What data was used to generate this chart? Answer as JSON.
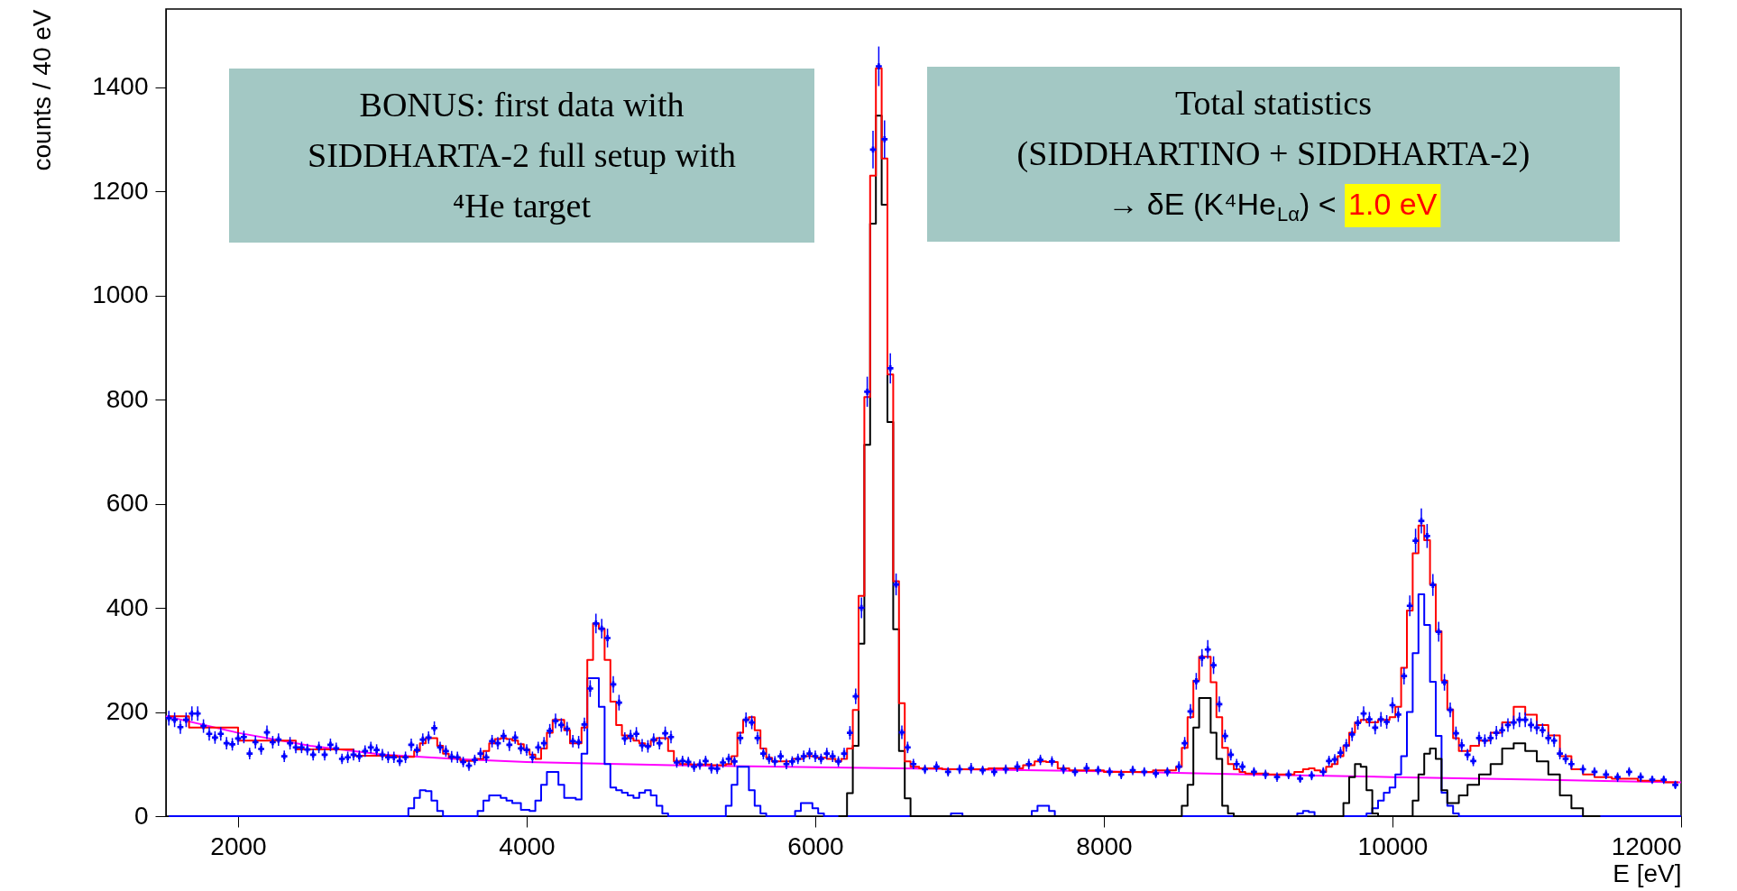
{
  "chart_data": {
    "type": "scatter",
    "xlabel": "E [eV]",
    "ylabel": "counts / 40 eV",
    "xlim": [
      1500,
      12000
    ],
    "ylim": [
      0,
      1550
    ],
    "xticks": [
      2000,
      4000,
      6000,
      8000,
      10000,
      12000
    ],
    "yticks": [
      0,
      200,
      400,
      600,
      800,
      1000,
      1200,
      1400
    ],
    "grid": false,
    "annotations": [
      "BONUS: first data with\nSIDDHARTA-2 full setup with\n⁴He target",
      "Total statistics\n(SIDDHARTINO + SIDDHARTA-2)\n→ δE (K⁴He$_{Lα}$) < ",
      "1.0 eV"
    ],
    "series": [
      {
        "type": "line",
        "color": "#ff00ff",
        "x": [
          1500,
          2000,
          2500,
          3000,
          3500,
          4000,
          5000,
          6000,
          7000,
          8000,
          9000,
          10000,
          11000,
          12000
        ],
        "values": [
          192,
          160,
          135,
          118,
          110,
          104,
          98,
          94,
          90,
          86,
          80,
          75,
          70,
          65
        ]
      },
      {
        "type": "step",
        "color": "#0000ff",
        "x": [
          1520,
          3160,
          3200,
          3240,
          3280,
          3320,
          3360,
          3400,
          3440,
          3640,
          3680,
          3720,
          3760,
          3800,
          3840,
          3880,
          3920,
          4000,
          4040,
          4080,
          4120,
          4160,
          4200,
          4240,
          4280,
          4320,
          4360,
          4400,
          4440,
          4480,
          4520,
          4560,
          4600,
          4640,
          4680,
          4720,
          4760,
          4800,
          4840,
          4880,
          4920,
          4960,
          5000,
          5360,
          5400,
          5440,
          5480,
          5520,
          5560,
          5600,
          5640,
          5680,
          5840,
          5880,
          5920,
          5960,
          6000,
          6040,
          6080,
          6920,
          6960,
          7000,
          7040,
          7480,
          7520,
          7560,
          7600,
          7640,
          7680,
          9320,
          9360,
          9400,
          9440,
          9480,
          9800,
          9840,
          9880,
          9920,
          9960,
          10000,
          10040,
          10080,
          10120,
          10160,
          10200,
          10240,
          10280,
          10320,
          10360,
          10400,
          10440,
          10480,
          12000
        ],
        "values": [
          0,
          0,
          15,
          35,
          50,
          48,
          30,
          10,
          0,
          0,
          10,
          30,
          40,
          40,
          35,
          30,
          25,
          12,
          10,
          30,
          60,
          85,
          85,
          60,
          35,
          35,
          32,
          120,
          265,
          265,
          210,
          100,
          55,
          50,
          45,
          40,
          35,
          45,
          50,
          40,
          20,
          5,
          0,
          0,
          20,
          60,
          95,
          95,
          50,
          20,
          5,
          0,
          0,
          10,
          25,
          25,
          15,
          5,
          0,
          0,
          5,
          5,
          0,
          0,
          10,
          20,
          20,
          10,
          0,
          0,
          5,
          10,
          8,
          0,
          0,
          5,
          15,
          30,
          45,
          55,
          80,
          115,
          200,
          313,
          426,
          367,
          258,
          154,
          45,
          20,
          5,
          0,
          0
        ]
      },
      {
        "type": "step",
        "color": "#000000",
        "x": [
          6160,
          6200,
          6240,
          6280,
          6320,
          6360,
          6400,
          6440,
          6480,
          6520,
          6560,
          6600,
          6640,
          6680,
          8520,
          8560,
          8600,
          8640,
          8680,
          8720,
          8760,
          8800,
          8840,
          8880,
          8920,
          9640,
          9680,
          9720,
          9760,
          9800,
          9840,
          9880,
          9920,
          10120,
          10160,
          10200,
          10240,
          10280,
          10320,
          10360,
          10400,
          10440,
          10480,
          10560,
          10640,
          10720,
          10800,
          10880,
          10960,
          11040,
          11120,
          11200,
          11280,
          11360,
          11440
        ],
        "values": [
          0,
          0,
          44,
          135,
          331,
          713,
          1138,
          1345,
          1174,
          757,
          359,
          125,
          34,
          0,
          0,
          20,
          60,
          170,
          227,
          227,
          160,
          110,
          20,
          5,
          0,
          0,
          25,
          75,
          100,
          95,
          50,
          5,
          0,
          0,
          30,
          80,
          120,
          130,
          110,
          50,
          25,
          25,
          40,
          60,
          80,
          100,
          130,
          140,
          125,
          105,
          80,
          40,
          15,
          0,
          0
        ]
      },
      {
        "type": "step",
        "color": "#ff0000",
        "x": [
          1520,
          1800,
          2200,
          2600,
          3000,
          3200,
          3240,
          3280,
          3320,
          3360,
          3400,
          3440,
          3480,
          3600,
          3680,
          3720,
          3760,
          3800,
          3840,
          3880,
          3920,
          3960,
          4000,
          4040,
          4080,
          4120,
          4160,
          4200,
          4240,
          4280,
          4320,
          4360,
          4400,
          4440,
          4480,
          4520,
          4560,
          4600,
          4640,
          4680,
          4720,
          4760,
          4800,
          4840,
          4880,
          4920,
          4960,
          5000,
          5040,
          5080,
          5200,
          5360,
          5400,
          5440,
          5480,
          5520,
          5560,
          5600,
          5640,
          5680,
          5720,
          5800,
          5880,
          5960,
          6040,
          6120,
          6160,
          6200,
          6240,
          6280,
          6320,
          6360,
          6400,
          6440,
          6480,
          6520,
          6560,
          6600,
          6640,
          6680,
          6760,
          7000,
          7400,
          7480,
          7560,
          7640,
          7720,
          7800,
          8200,
          8480,
          8520,
          8560,
          8600,
          8640,
          8680,
          8720,
          8760,
          8800,
          8840,
          8880,
          8920,
          8960,
          9000,
          9280,
          9360,
          9400,
          9440,
          9480,
          9520,
          9560,
          9600,
          9640,
          9680,
          9720,
          9760,
          9800,
          9840,
          9880,
          9920,
          9960,
          10000,
          10040,
          10080,
          10120,
          10160,
          10200,
          10240,
          10280,
          10320,
          10360,
          10400,
          10440,
          10480,
          10520,
          10560,
          10640,
          10720,
          10800,
          10880,
          10960,
          11040,
          11120,
          11200,
          11280,
          11360,
          11440,
          11600,
          11800,
          11980
        ],
        "values": [
          192,
          170,
          145,
          128,
          116,
          114,
          125,
          140,
          150,
          150,
          135,
          120,
          112,
          106,
          110,
          125,
          140,
          148,
          150,
          148,
          145,
          138,
          128,
          118,
          110,
          130,
          160,
          185,
          185,
          165,
          140,
          140,
          170,
          300,
          370,
          360,
          300,
          220,
          175,
          155,
          150,
          145,
          140,
          135,
          145,
          150,
          150,
          125,
          105,
          100,
          99,
          98,
          100,
          115,
          160,
          185,
          190,
          165,
          130,
          112,
          105,
          105,
          110,
          115,
          112,
          110,
          105,
          110,
          130,
          204,
          423,
          805,
          1230,
          1436,
          1263,
          848,
          451,
          217,
          105,
          95,
          92,
          90,
          92,
          98,
          105,
          104,
          92,
          88,
          85,
          88,
          95,
          131,
          190,
          260,
          306,
          306,
          257,
          190,
          131,
          100,
          90,
          85,
          82,
          80,
          85,
          90,
          92,
          88,
          85,
          95,
          100,
          115,
          135,
          160,
          180,
          185,
          180,
          180,
          185,
          185,
          190,
          210,
          285,
          395,
          505,
          558,
          530,
          445,
          355,
          260,
          205,
          150,
          125,
          125,
          135,
          145,
          160,
          180,
          210,
          195,
          175,
          155,
          115,
          90,
          80,
          75,
          72,
          68,
          65
        ]
      },
      {
        "color": "#0000ff",
        "marker": "cross",
        "x": [
          1520,
          1560,
          1600,
          1640,
          1680,
          1720,
          1760,
          1800,
          1840,
          1880,
          1920,
          1960,
          2000,
          2040,
          2080,
          2120,
          2160,
          2200,
          2240,
          2280,
          2320,
          2360,
          2400,
          2440,
          2480,
          2520,
          2560,
          2600,
          2640,
          2680,
          2720,
          2760,
          2800,
          2840,
          2880,
          2920,
          2960,
          3000,
          3040,
          3080,
          3120,
          3160,
          3200,
          3240,
          3280,
          3320,
          3360,
          3400,
          3440,
          3480,
          3520,
          3560,
          3600,
          3640,
          3680,
          3720,
          3760,
          3800,
          3840,
          3880,
          3920,
          3960,
          4000,
          4040,
          4080,
          4120,
          4160,
          4200,
          4240,
          4280,
          4320,
          4360,
          4400,
          4440,
          4480,
          4520,
          4560,
          4600,
          4640,
          4680,
          4720,
          4760,
          4800,
          4840,
          4880,
          4920,
          4960,
          5000,
          5040,
          5080,
          5120,
          5160,
          5200,
          5240,
          5280,
          5320,
          5360,
          5400,
          5440,
          5480,
          5520,
          5560,
          5600,
          5640,
          5680,
          5720,
          5760,
          5800,
          5840,
          5880,
          5920,
          5960,
          6000,
          6040,
          6080,
          6120,
          6160,
          6200,
          6240,
          6280,
          6320,
          6360,
          6400,
          6440,
          6480,
          6520,
          6560,
          6600,
          6640,
          6680,
          6760,
          6840,
          6920,
          7000,
          7080,
          7160,
          7240,
          7320,
          7400,
          7480,
          7560,
          7640,
          7720,
          7800,
          7880,
          7960,
          8040,
          8120,
          8200,
          8280,
          8360,
          8440,
          8520,
          8560,
          8600,
          8640,
          8680,
          8720,
          8760,
          8800,
          8840,
          8880,
          8920,
          8960,
          9040,
          9120,
          9200,
          9280,
          9360,
          9440,
          9520,
          9560,
          9600,
          9640,
          9680,
          9720,
          9760,
          9800,
          9840,
          9880,
          9920,
          9960,
          10000,
          10040,
          10080,
          10120,
          10160,
          10200,
          10240,
          10280,
          10320,
          10360,
          10400,
          10440,
          10480,
          10520,
          10560,
          10600,
          10640,
          10680,
          10720,
          10760,
          10800,
          10840,
          10880,
          10920,
          10960,
          11000,
          11040,
          11080,
          11120,
          11160,
          11200,
          11240,
          11320,
          11400,
          11480,
          11560,
          11640,
          11720,
          11800,
          11880,
          11960
        ],
        "values": [
          188,
          185,
          171,
          185,
          197,
          197,
          173,
          158,
          151,
          158,
          140,
          138,
          149,
          152,
          120,
          142,
          129,
          161,
          142,
          147,
          115,
          140,
          132,
          132,
          128,
          118,
          132,
          118,
          137,
          130,
          110,
          113,
          118,
          115,
          125,
          132,
          127,
          118,
          113,
          113,
          106,
          113,
          137,
          127,
          147,
          151,
          169,
          132,
          125,
          114,
          113,
          104,
          97,
          108,
          120,
          113,
          144,
          140,
          154,
          137,
          151,
          130,
          127,
          113,
          132,
          140,
          164,
          183,
          175,
          168,
          144,
          142,
          176,
          245,
          370,
          360,
          342,
          253,
          218,
          149,
          154,
          158,
          136,
          134,
          147,
          140,
          159,
          152,
          103,
          106,
          104,
          95,
          99,
          106,
          92,
          91,
          103,
          110,
          105,
          150,
          185,
          180,
          150,
          120,
          110,
          105,
          115,
          100,
          105,
          110,
          115,
          120,
          115,
          110,
          120,
          115,
          105,
          120,
          160,
          230,
          400,
          815,
          1280,
          1440,
          1300,
          860,
          445,
          161,
          132,
          100,
          90,
          95,
          85,
          90,
          92,
          88,
          85,
          90,
          95,
          100,
          108,
          105,
          90,
          85,
          92,
          88,
          85,
          80,
          88,
          85,
          82,
          85,
          95,
          140,
          201,
          259,
          304,
          320,
          290,
          215,
          154,
          118,
          100,
          95,
          85,
          80,
          75,
          80,
          72,
          78,
          85,
          106,
          109,
          122,
          136,
          157,
          179,
          197,
          186,
          170,
          186,
          181,
          213,
          195,
          269,
          404,
          529,
          567,
          538,
          444,
          354,
          257,
          204,
          159,
          136,
          118,
          106,
          150,
          145,
          150,
          160,
          165,
          175,
          180,
          185,
          185,
          175,
          170,
          165,
          150,
          145,
          120,
          110,
          100,
          90,
          85,
          80,
          75,
          85,
          75,
          70,
          70,
          60
        ],
        "errors": [
          14,
          14,
          13,
          14,
          14,
          14,
          13,
          13,
          12,
          13,
          12,
          12,
          12,
          12,
          11,
          12,
          11,
          13,
          12,
          12,
          11,
          12,
          11,
          11,
          11,
          11,
          11,
          11,
          12,
          11,
          10,
          11,
          11,
          11,
          11,
          11,
          11,
          11,
          11,
          11,
          10,
          11,
          12,
          11,
          12,
          12,
          13,
          11,
          11,
          11,
          11,
          10,
          10,
          10,
          11,
          11,
          12,
          12,
          12,
          12,
          12,
          11,
          11,
          11,
          11,
          12,
          13,
          14,
          13,
          13,
          12,
          12,
          13,
          16,
          19,
          19,
          18,
          16,
          15,
          12,
          12,
          13,
          12,
          12,
          12,
          12,
          13,
          12,
          10,
          10,
          10,
          10,
          10,
          10,
          10,
          10,
          10,
          10,
          10,
          12,
          14,
          13,
          12,
          11,
          10,
          10,
          11,
          10,
          10,
          10,
          11,
          11,
          11,
          10,
          11,
          11,
          10,
          11,
          13,
          15,
          20,
          29,
          36,
          38,
          36,
          29,
          21,
          13,
          11,
          10,
          9,
          10,
          9,
          9,
          10,
          9,
          9,
          9,
          10,
          10,
          10,
          10,
          9,
          9,
          10,
          9,
          9,
          9,
          9,
          9,
          9,
          9,
          10,
          12,
          14,
          16,
          17,
          18,
          17,
          15,
          12,
          11,
          10,
          10,
          9,
          9,
          9,
          9,
          8,
          9,
          9,
          10,
          10,
          11,
          12,
          13,
          13,
          14,
          14,
          13,
          14,
          13,
          15,
          14,
          16,
          20,
          23,
          24,
          23,
          21,
          19,
          16,
          14,
          13,
          12,
          11,
          10,
          12,
          12,
          12,
          13,
          13,
          13,
          13,
          14,
          14,
          13,
          13,
          13,
          12,
          12,
          11,
          10,
          10,
          9,
          9,
          9,
          9,
          9,
          9,
          8,
          8,
          8
        ]
      }
    ]
  }
}
